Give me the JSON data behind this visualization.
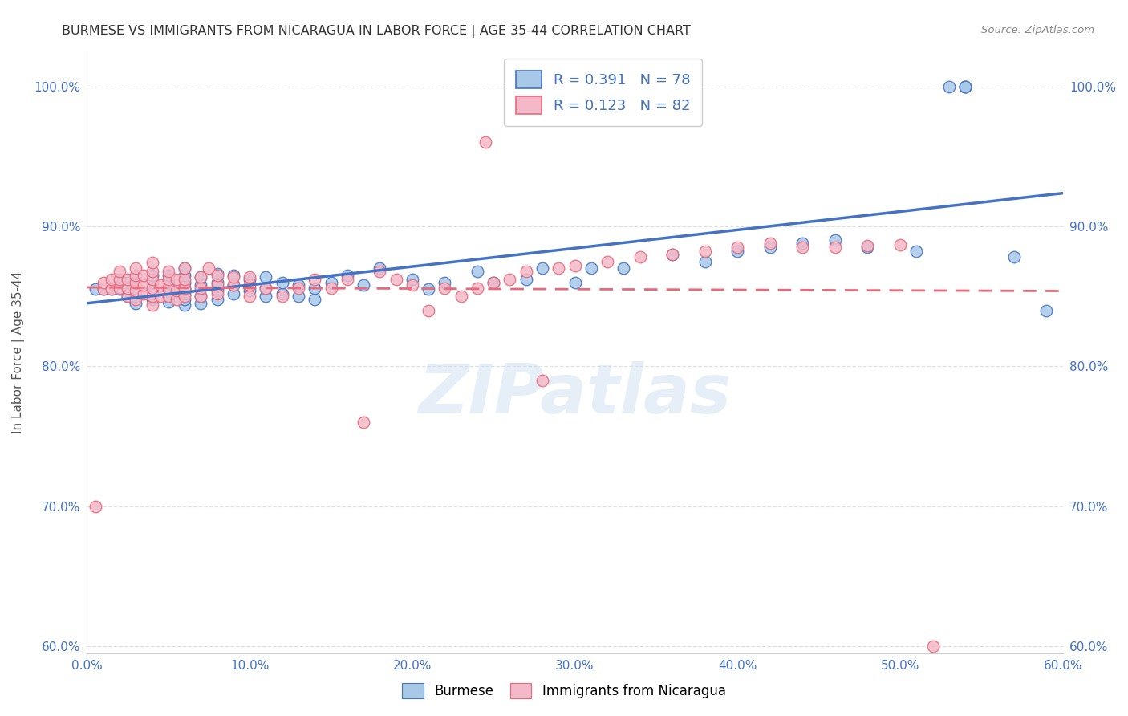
{
  "title": "BURMESE VS IMMIGRANTS FROM NICARAGUA IN LABOR FORCE | AGE 35-44 CORRELATION CHART",
  "source": "Source: ZipAtlas.com",
  "ylabel": "In Labor Force | Age 35-44",
  "xlim": [
    0.0,
    0.6
  ],
  "ylim": [
    0.595,
    1.025
  ],
  "x_ticks": [
    0.0,
    0.1,
    0.2,
    0.3,
    0.4,
    0.5,
    0.6
  ],
  "x_tick_labels": [
    "0.0%",
    "10.0%",
    "20.0%",
    "30.0%",
    "40.0%",
    "50.0%",
    "60.0%"
  ],
  "y_ticks": [
    0.6,
    0.7,
    0.8,
    0.9,
    1.0
  ],
  "y_tick_labels": [
    "60.0%",
    "70.0%",
    "80.0%",
    "90.0%",
    "100.0%"
  ],
  "blue_color": "#a8c8e8",
  "pink_color": "#f4b8c8",
  "line_blue": "#4472c4",
  "line_pink": "#e8697a",
  "tick_color": "#4472c4",
  "legend_text_color": "#4472c4",
  "legend_blue_label": "R = 0.391   N = 78",
  "legend_pink_label": "R = 0.123   N = 82",
  "blue_scatter_x": [
    0.005,
    0.01,
    0.015,
    0.02,
    0.02,
    0.025,
    0.025,
    0.03,
    0.03,
    0.03,
    0.03,
    0.04,
    0.04,
    0.04,
    0.04,
    0.04,
    0.05,
    0.05,
    0.05,
    0.05,
    0.05,
    0.06,
    0.06,
    0.06,
    0.06,
    0.06,
    0.06,
    0.06,
    0.07,
    0.07,
    0.07,
    0.07,
    0.08,
    0.08,
    0.08,
    0.08,
    0.09,
    0.09,
    0.09,
    0.1,
    0.1,
    0.11,
    0.11,
    0.11,
    0.12,
    0.12,
    0.13,
    0.13,
    0.14,
    0.14,
    0.15,
    0.16,
    0.17,
    0.18,
    0.2,
    0.21,
    0.22,
    0.24,
    0.25,
    0.27,
    0.28,
    0.3,
    0.31,
    0.33,
    0.36,
    0.38,
    0.4,
    0.42,
    0.44,
    0.46,
    0.48,
    0.51,
    0.53,
    0.54,
    0.54,
    0.54,
    0.57,
    0.59
  ],
  "blue_scatter_y": [
    0.855,
    0.855,
    0.855,
    0.855,
    0.86,
    0.85,
    0.86,
    0.845,
    0.85,
    0.855,
    0.86,
    0.848,
    0.852,
    0.856,
    0.86,
    0.865,
    0.846,
    0.85,
    0.855,
    0.86,
    0.865,
    0.844,
    0.848,
    0.852,
    0.855,
    0.86,
    0.865,
    0.87,
    0.845,
    0.85,
    0.858,
    0.864,
    0.848,
    0.854,
    0.86,
    0.866,
    0.852,
    0.858,
    0.865,
    0.854,
    0.862,
    0.85,
    0.856,
    0.864,
    0.852,
    0.86,
    0.85,
    0.858,
    0.848,
    0.856,
    0.86,
    0.865,
    0.858,
    0.87,
    0.862,
    0.855,
    0.86,
    0.868,
    0.86,
    0.862,
    0.87,
    0.86,
    0.87,
    0.87,
    0.88,
    0.875,
    0.882,
    0.885,
    0.888,
    0.89,
    0.885,
    0.882,
    1.0,
    1.0,
    1.0,
    1.0,
    0.878,
    0.84
  ],
  "pink_scatter_x": [
    0.005,
    0.01,
    0.01,
    0.015,
    0.015,
    0.02,
    0.02,
    0.02,
    0.025,
    0.025,
    0.025,
    0.03,
    0.03,
    0.03,
    0.03,
    0.03,
    0.035,
    0.035,
    0.035,
    0.04,
    0.04,
    0.04,
    0.04,
    0.04,
    0.04,
    0.045,
    0.045,
    0.05,
    0.05,
    0.05,
    0.05,
    0.055,
    0.055,
    0.055,
    0.06,
    0.06,
    0.06,
    0.06,
    0.07,
    0.07,
    0.07,
    0.075,
    0.08,
    0.08,
    0.08,
    0.09,
    0.09,
    0.1,
    0.1,
    0.1,
    0.11,
    0.12,
    0.13,
    0.14,
    0.15,
    0.16,
    0.17,
    0.18,
    0.19,
    0.2,
    0.21,
    0.22,
    0.23,
    0.24,
    0.25,
    0.26,
    0.27,
    0.28,
    0.29,
    0.3,
    0.32,
    0.34,
    0.36,
    0.38,
    0.4,
    0.42,
    0.44,
    0.46,
    0.48,
    0.5,
    0.52,
    0.245
  ],
  "pink_scatter_y": [
    0.7,
    0.855,
    0.86,
    0.855,
    0.862,
    0.856,
    0.862,
    0.868,
    0.85,
    0.856,
    0.862,
    0.848,
    0.854,
    0.86,
    0.865,
    0.87,
    0.852,
    0.858,
    0.865,
    0.844,
    0.85,
    0.856,
    0.862,
    0.868,
    0.874,
    0.85,
    0.858,
    0.85,
    0.856,
    0.862,
    0.868,
    0.848,
    0.854,
    0.862,
    0.85,
    0.856,
    0.862,
    0.87,
    0.85,
    0.856,
    0.864,
    0.87,
    0.852,
    0.858,
    0.865,
    0.858,
    0.864,
    0.85,
    0.858,
    0.864,
    0.856,
    0.85,
    0.856,
    0.862,
    0.856,
    0.862,
    0.76,
    0.868,
    0.862,
    0.858,
    0.84,
    0.856,
    0.85,
    0.856,
    0.86,
    0.862,
    0.868,
    0.79,
    0.87,
    0.872,
    0.875,
    0.878,
    0.88,
    0.882,
    0.885,
    0.888,
    0.885,
    0.885,
    0.886,
    0.887,
    0.6,
    0.96
  ],
  "watermark_text": "ZIPatlas",
  "background_color": "#ffffff",
  "grid_color": "#e0e0e0",
  "bottom_legend_labels": [
    "Burmese",
    "Immigrants from Nicaragua"
  ]
}
